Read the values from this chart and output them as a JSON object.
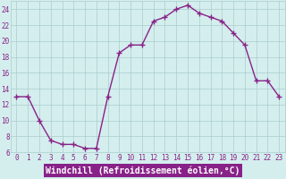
{
  "x": [
    0,
    1,
    2,
    3,
    4,
    5,
    6,
    7,
    8,
    9,
    10,
    11,
    12,
    13,
    14,
    15,
    16,
    17,
    18,
    19,
    20,
    21,
    22,
    23
  ],
  "y": [
    13,
    13,
    10,
    7.5,
    7,
    7,
    6.5,
    6.5,
    13,
    18.5,
    19.5,
    19.5,
    22.5,
    23,
    24,
    24.5,
    23.5,
    23,
    22.5,
    21,
    19.5,
    15,
    15,
    13
  ],
  "line_color": "#882288",
  "marker_color": "#882288",
  "bg_color": "#d4eeee",
  "grid_color": "#aacccc",
  "xlabel": "Windchill (Refroidissement éolien,°C)",
  "ylim": [
    6,
    25
  ],
  "xlim": [
    -0.5,
    23.5
  ],
  "yticks": [
    6,
    8,
    10,
    12,
    14,
    16,
    18,
    20,
    22,
    24
  ],
  "xticks": [
    0,
    1,
    2,
    3,
    4,
    5,
    6,
    7,
    8,
    9,
    10,
    11,
    12,
    13,
    14,
    15,
    16,
    17,
    18,
    19,
    20,
    21,
    22,
    23
  ],
  "xlabel_color": "#ffffff",
  "xlabel_bg": "#882288",
  "tick_fontsize": 5.5,
  "xlabel_fontsize": 7,
  "marker_size": 4,
  "line_width": 1.0
}
